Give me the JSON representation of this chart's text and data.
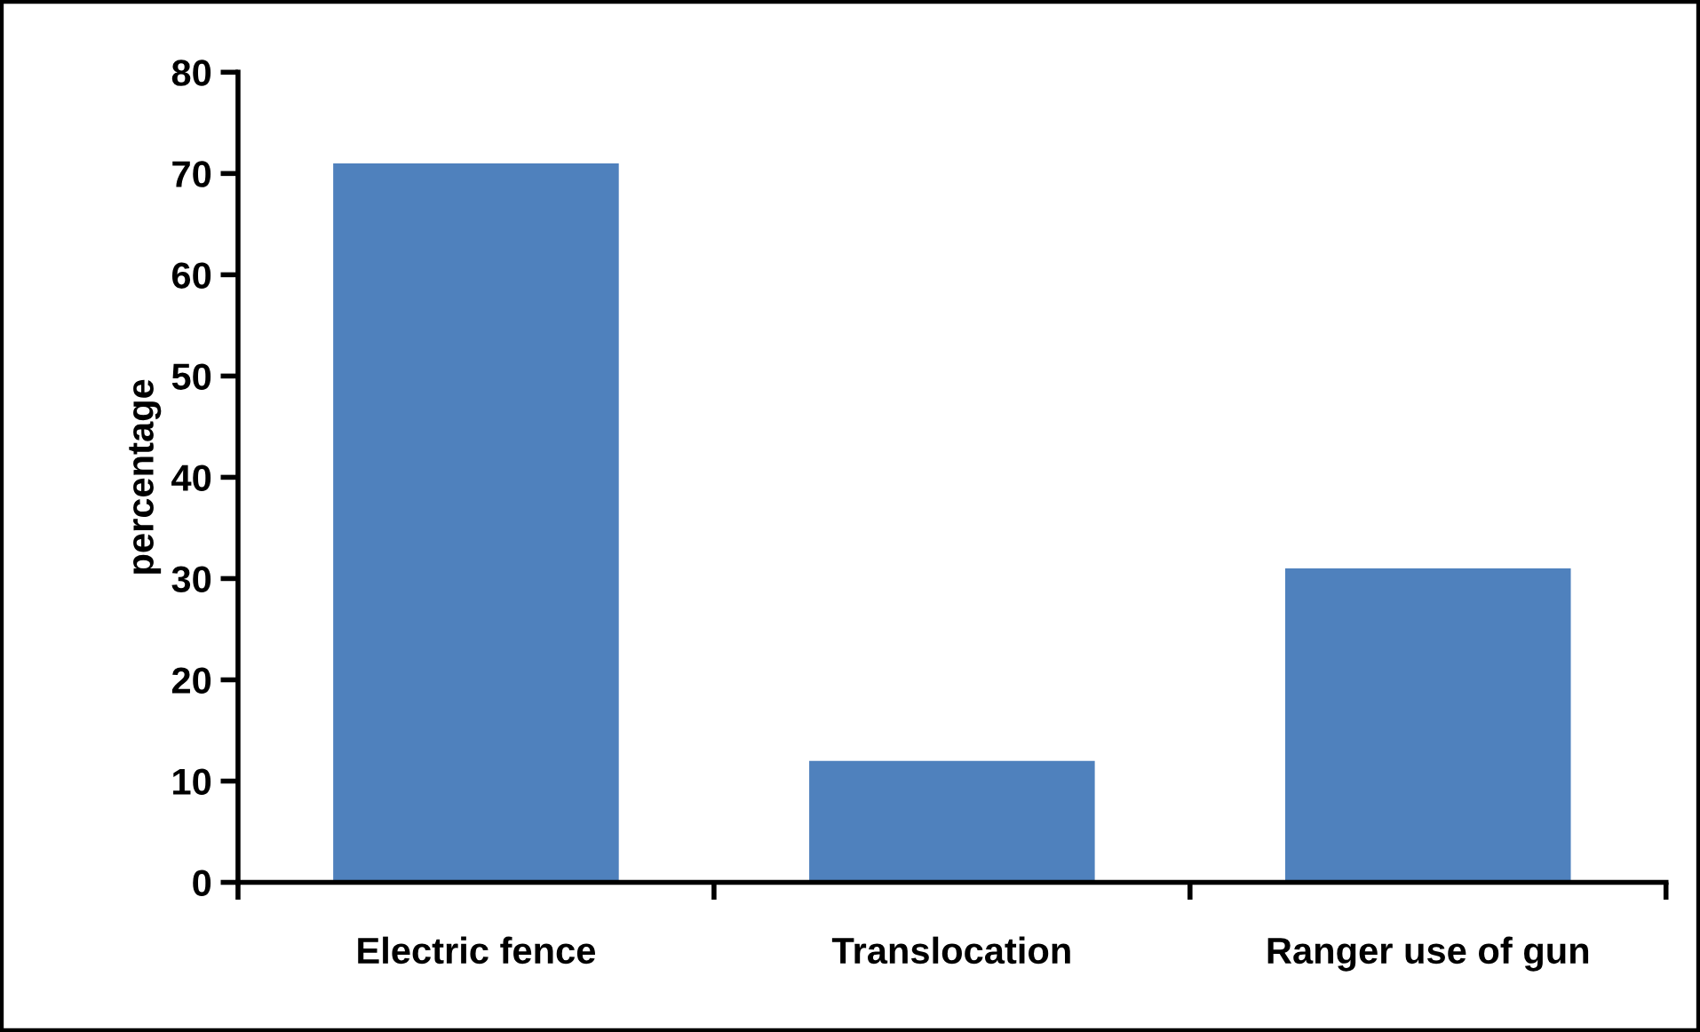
{
  "chart_data": {
    "type": "bar",
    "ylabel": "percentage",
    "categories": [
      "Electric fence",
      "Translocation",
      "Ranger use of gun"
    ],
    "values": [
      71,
      12,
      31
    ],
    "color": "#4f81bd",
    "ylim": [
      0,
      80
    ],
    "yticks": [
      0,
      10,
      20,
      30,
      40,
      50,
      60,
      70,
      80
    ],
    "grid": false,
    "legend": false
  }
}
